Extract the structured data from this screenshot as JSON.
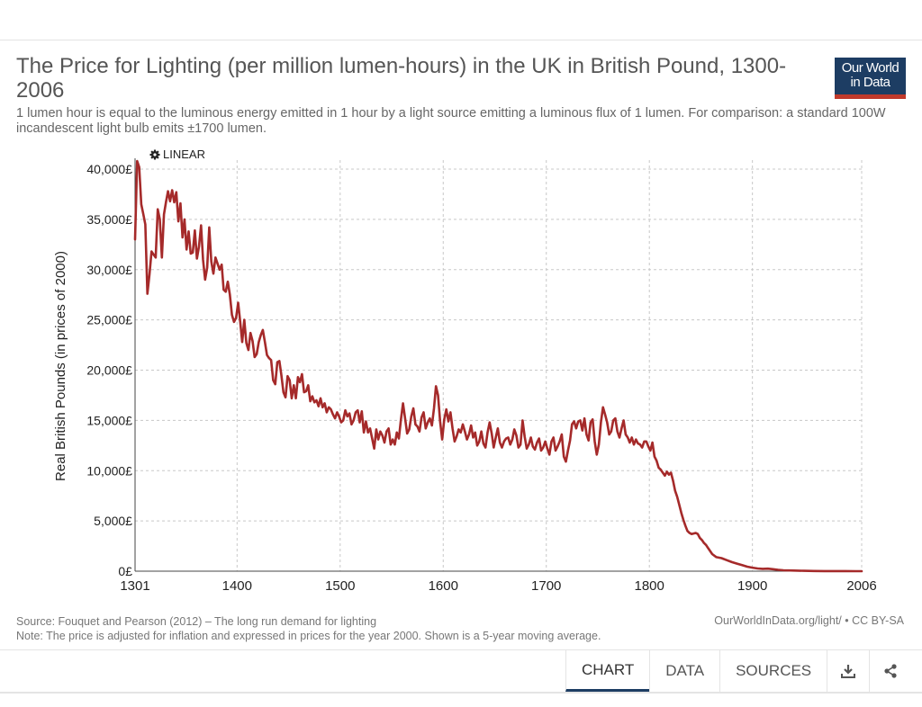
{
  "header": {
    "title": "The Price for Lighting (per million lumen-hours) in the UK in British Pound, 1300-2006",
    "subtitle": "1 lumen hour is equal to the luminous energy emitted in 1 hour by a light source emitting a luminous flux of 1 lumen. For comparison: a standard 100W incandescent light bulb emits ±1700 lumen.",
    "logo_line1": "Our World",
    "logo_line2": "in Data"
  },
  "controls": {
    "scale_label": "LINEAR",
    "gear_icon": "gear-icon"
  },
  "chart_data": {
    "type": "line",
    "title": "The Price for Lighting (per million lumen-hours) in the UK in British Pound, 1300-2006",
    "ylabel": "Real British Pounds (in prices of 2000)",
    "xlabel": "",
    "xlim": [
      1301,
      2006
    ],
    "ylim": [
      0,
      40000
    ],
    "x_ticks": [
      1301,
      1400,
      1500,
      1600,
      1700,
      1800,
      1900,
      2006
    ],
    "y_ticks": [
      0,
      5000,
      10000,
      15000,
      20000,
      25000,
      30000,
      35000,
      40000
    ],
    "y_tick_labels": [
      "0£",
      "5,000£",
      "10,000£",
      "15,000£",
      "20,000£",
      "25,000£",
      "30,000£",
      "35,000£",
      "40,000£"
    ],
    "grid": true,
    "color": "#a52a2a",
    "series": [
      {
        "name": "United Kingdom",
        "x": [
          1301,
          1303,
          1305,
          1307,
          1309,
          1311,
          1313,
          1315,
          1317,
          1319,
          1321,
          1323,
          1325,
          1327,
          1329,
          1331,
          1333,
          1335,
          1337,
          1339,
          1341,
          1343,
          1345,
          1347,
          1349,
          1351,
          1353,
          1355,
          1357,
          1359,
          1361,
          1363,
          1365,
          1367,
          1369,
          1371,
          1373,
          1375,
          1377,
          1379,
          1381,
          1383,
          1385,
          1387,
          1389,
          1391,
          1393,
          1395,
          1397,
          1399,
          1401,
          1403,
          1405,
          1407,
          1409,
          1411,
          1413,
          1415,
          1417,
          1419,
          1421,
          1423,
          1425,
          1427,
          1429,
          1431,
          1433,
          1435,
          1437,
          1439,
          1441,
          1443,
          1445,
          1447,
          1449,
          1451,
          1453,
          1455,
          1457,
          1459,
          1461,
          1463,
          1465,
          1467,
          1469,
          1471,
          1473,
          1475,
          1477,
          1479,
          1481,
          1483,
          1485,
          1487,
          1489,
          1491,
          1493,
          1495,
          1497,
          1499,
          1501,
          1503,
          1505,
          1507,
          1509,
          1511,
          1513,
          1515,
          1517,
          1519,
          1521,
          1523,
          1525,
          1527,
          1529,
          1531,
          1533,
          1535,
          1537,
          1539,
          1541,
          1543,
          1545,
          1547,
          1549,
          1551,
          1553,
          1555,
          1557,
          1559,
          1561,
          1563,
          1565,
          1567,
          1569,
          1571,
          1573,
          1575,
          1577,
          1579,
          1581,
          1583,
          1585,
          1587,
          1589,
          1591,
          1593,
          1595,
          1597,
          1599,
          1601,
          1603,
          1605,
          1607,
          1609,
          1611,
          1613,
          1615,
          1617,
          1619,
          1621,
          1623,
          1625,
          1627,
          1629,
          1631,
          1633,
          1635,
          1637,
          1639,
          1641,
          1643,
          1645,
          1647,
          1649,
          1651,
          1653,
          1655,
          1657,
          1659,
          1661,
          1663,
          1665,
          1667,
          1669,
          1671,
          1673,
          1675,
          1677,
          1679,
          1681,
          1683,
          1685,
          1687,
          1689,
          1691,
          1693,
          1695,
          1697,
          1699,
          1701,
          1703,
          1705,
          1707,
          1709,
          1711,
          1713,
          1715,
          1717,
          1719,
          1721,
          1723,
          1725,
          1727,
          1729,
          1731,
          1733,
          1735,
          1737,
          1739,
          1741,
          1743,
          1745,
          1747,
          1749,
          1751,
          1753,
          1755,
          1757,
          1759,
          1761,
          1763,
          1765,
          1767,
          1769,
          1771,
          1773,
          1775,
          1777,
          1779,
          1781,
          1783,
          1785,
          1787,
          1789,
          1791,
          1793,
          1795,
          1797,
          1799,
          1801,
          1803,
          1805,
          1807,
          1809,
          1811,
          1813,
          1815,
          1817,
          1819,
          1821,
          1823,
          1825,
          1827,
          1829,
          1831,
          1833,
          1835,
          1837,
          1839,
          1841,
          1843,
          1845,
          1847,
          1849,
          1851,
          1853,
          1855,
          1857,
          1859,
          1861,
          1865,
          1870,
          1875,
          1880,
          1885,
          1890,
          1895,
          1900,
          1905,
          1910,
          1915,
          1920,
          1925,
          1930,
          1940,
          1950,
          1960,
          1970,
          1980,
          1990,
          2000,
          2006
        ],
        "y": [
          33000,
          40800,
          40200,
          36500,
          35500,
          34500,
          27600,
          29500,
          31800,
          31500,
          31200,
          36000,
          35000,
          31200,
          35500,
          36700,
          37800,
          36800,
          37900,
          36700,
          37700,
          34800,
          36600,
          33200,
          35000,
          32000,
          33800,
          31600,
          31700,
          33900,
          31100,
          32300,
          34400,
          31000,
          29000,
          30200,
          34200,
          30800,
          29600,
          31200,
          30600,
          30000,
          30500,
          28000,
          27800,
          28800,
          27500,
          25500,
          24800,
          25200,
          26700,
          24800,
          22800,
          25000,
          22700,
          22000,
          23700,
          22900,
          21300,
          21600,
          22800,
          23500,
          24000,
          22800,
          21500,
          21200,
          21000,
          19000,
          18600,
          20800,
          20900,
          19500,
          17800,
          17300,
          19400,
          19000,
          17200,
          18500,
          17200,
          19300,
          18800,
          19600,
          17800,
          17900,
          18500,
          16900,
          17400,
          16800,
          17000,
          16400,
          17200,
          16300,
          16700,
          15800,
          16300,
          16100,
          15600,
          15200,
          15800,
          15400,
          14800,
          15000,
          16000,
          15400,
          15700,
          14600,
          15000,
          15800,
          16000,
          14800,
          15900,
          13800,
          14900,
          13800,
          14200,
          13200,
          12200,
          14100,
          13100,
          13900,
          13500,
          12800,
          13900,
          14200,
          12600,
          13100,
          12600,
          13800,
          13200,
          15100,
          16700,
          15200,
          13700,
          14100,
          15400,
          16200,
          14600,
          14400,
          13900,
          15300,
          15800,
          14200,
          14800,
          15200,
          14500,
          16200,
          18400,
          17500,
          14900,
          13100,
          15100,
          16100,
          14900,
          15800,
          14200,
          12900,
          13400,
          14100,
          13800,
          14600,
          13900,
          13100,
          13600,
          14500,
          13300,
          13800,
          12500,
          12900,
          13900,
          12700,
          12300,
          13800,
          14800,
          13700,
          12300,
          13300,
          14200,
          12800,
          12300,
          12900,
          13200,
          13300,
          12600,
          13100,
          14100,
          13500,
          12300,
          12600,
          15000,
          13400,
          12200,
          12600,
          13300,
          12400,
          12100,
          12800,
          13200,
          12000,
          12300,
          12900,
          12200,
          11600,
          12900,
          13300,
          12000,
          12400,
          12900,
          13600,
          11400,
          10900,
          12000,
          13000,
          14600,
          14900,
          14200,
          14900,
          15000,
          14000,
          15200,
          13600,
          13000,
          14800,
          15100,
          12900,
          11600,
          12600,
          14800,
          16300,
          15600,
          14800,
          13600,
          13900,
          15000,
          15200,
          13900,
          13300,
          14200,
          15000,
          13600,
          13300,
          12800,
          13300,
          12600,
          13100,
          12700,
          12600,
          12300,
          12900,
          12900,
          12400,
          12000,
          12800,
          11400,
          11000,
          10300,
          10100,
          9800,
          9500,
          9900,
          9600,
          9800,
          9000,
          8000,
          7400,
          6600,
          5800,
          5100,
          4500,
          4000,
          3800,
          3700,
          3750,
          3800,
          3700,
          3300,
          3100,
          2800,
          2600,
          2300,
          2000,
          1700,
          1400,
          1300,
          1100,
          900,
          750,
          600,
          450,
          350,
          270,
          230,
          250,
          200,
          130,
          90,
          60,
          40,
          20,
          12,
          8,
          5,
          3,
          2
        ]
      }
    ]
  },
  "footer": {
    "source": "Source: Fouquet and Pearson (2012) – The long run demand for lighting",
    "note": "Note: The price is adjusted for inflation and expressed in prices for the year 2000. Shown is a 5-year moving average.",
    "license": "OurWorldInData.org/light/ • CC BY-SA"
  },
  "tabs": {
    "chart": "CHART",
    "data": "DATA",
    "sources": "SOURCES",
    "download_icon": "download-icon",
    "share_icon": "share-icon"
  }
}
